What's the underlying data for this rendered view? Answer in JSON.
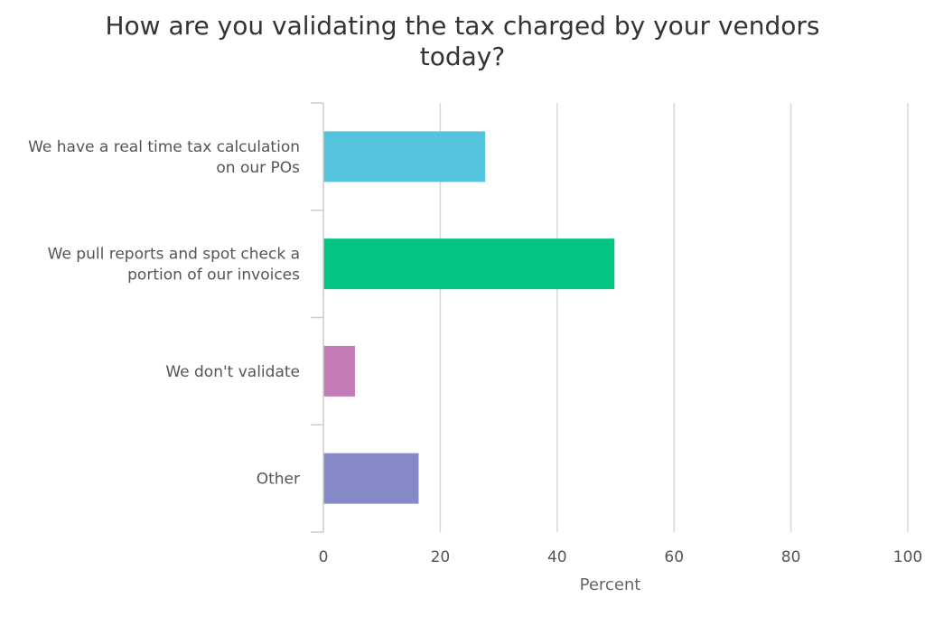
{
  "chart_data": {
    "type": "bar",
    "orientation": "horizontal",
    "title": [
      "How are you validating the tax charged by your vendors",
      "today?"
    ],
    "categories": [
      [
        "We have a real time tax calculation",
        "on our POs"
      ],
      [
        "We pull reports and spot check a",
        "portion of our invoices"
      ],
      [
        "We don't validate"
      ],
      [
        "Other"
      ]
    ],
    "values": [
      27.7,
      49.8,
      5.4,
      16.3
    ],
    "colors": [
      "#54c3dc",
      "#02c485",
      "#c27bb7",
      "#8589c7"
    ],
    "xlabel": "Percent",
    "ylabel": "",
    "xlim": [
      0,
      100
    ],
    "xticks": [
      0,
      20,
      40,
      60,
      80,
      100
    ],
    "grid": true
  }
}
